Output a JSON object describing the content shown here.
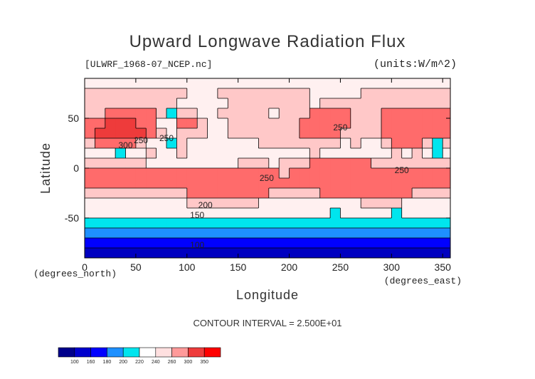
{
  "chart_data": {
    "type": "heatmap",
    "title": "Upward Longwave Radiation Flux",
    "source_label": "[ULWRF_1968-07_NCEP.nc]",
    "units_label": "(units:W/m^2)",
    "xlabel": "Longitude",
    "ylabel": "Latitude",
    "x_unit_label": "(degrees_east)",
    "y_unit_label": "(degrees_north)",
    "xlim": [
      0,
      357.5
    ],
    "ylim": [
      -90,
      90
    ],
    "x_ticks": [
      0,
      50,
      100,
      150,
      200,
      250,
      300,
      350
    ],
    "y_ticks": [
      -50,
      0,
      50
    ],
    "contour_interval_text": "CONTOUR INTERVAL = 2.500E+01",
    "colorbar_levels": [
      100,
      160,
      180,
      200,
      220,
      240,
      260,
      300,
      350
    ],
    "contour_labels": [
      "300",
      "250",
      "250",
      "250",
      "250",
      "250",
      "200",
      "150",
      "100"
    ],
    "grid_resolution_deg": 10,
    "latitudes": [
      85,
      75,
      65,
      55,
      45,
      35,
      25,
      15,
      5,
      -5,
      -15,
      -25,
      -35,
      -45,
      -55,
      -65,
      -75,
      -85
    ],
    "longitudes": [
      5,
      15,
      25,
      35,
      45,
      55,
      65,
      75,
      85,
      95,
      105,
      115,
      125,
      135,
      145,
      155,
      165,
      175,
      185,
      195,
      205,
      215,
      225,
      235,
      245,
      255,
      265,
      275,
      285,
      295,
      305,
      315,
      325,
      335,
      345,
      355
    ],
    "values": [
      [
        230,
        230,
        230,
        230,
        230,
        230,
        230,
        230,
        230,
        230,
        230,
        230,
        230,
        230,
        230,
        230,
        230,
        230,
        230,
        230,
        230,
        230,
        230,
        230,
        230,
        230,
        230,
        230,
        230,
        230,
        230,
        230,
        230,
        230,
        230,
        230
      ],
      [
        240,
        240,
        240,
        240,
        240,
        240,
        240,
        240,
        240,
        240,
        230,
        230,
        230,
        240,
        240,
        240,
        240,
        240,
        240,
        240,
        240,
        240,
        230,
        230,
        230,
        230,
        230,
        240,
        240,
        240,
        240,
        240,
        240,
        240,
        240,
        240
      ],
      [
        240,
        240,
        240,
        240,
        240,
        240,
        240,
        240,
        240,
        230,
        230,
        230,
        230,
        230,
        240,
        240,
        240,
        240,
        240,
        240,
        240,
        240,
        230,
        250,
        250,
        250,
        250,
        240,
        240,
        240,
        240,
        240,
        240,
        240,
        240,
        240
      ],
      [
        250,
        250,
        260,
        260,
        280,
        280,
        260,
        240,
        210,
        240,
        240,
        230,
        230,
        240,
        240,
        240,
        240,
        240,
        230,
        240,
        240,
        250,
        270,
        270,
        270,
        270,
        250,
        250,
        250,
        270,
        270,
        270,
        270,
        270,
        270,
        270
      ],
      [
        270,
        280,
        300,
        300,
        310,
        280,
        270,
        220,
        230,
        270,
        260,
        240,
        230,
        230,
        240,
        240,
        240,
        240,
        240,
        240,
        250,
        260,
        270,
        270,
        270,
        260,
        250,
        250,
        250,
        270,
        270,
        270,
        270,
        270,
        270,
        280
      ],
      [
        280,
        300,
        310,
        300,
        300,
        300,
        280,
        240,
        230,
        240,
        240,
        240,
        230,
        230,
        240,
        240,
        240,
        240,
        240,
        240,
        250,
        260,
        270,
        270,
        270,
        250,
        240,
        240,
        240,
        270,
        270,
        270,
        270,
        270,
        270,
        280
      ],
      [
        250,
        260,
        270,
        270,
        260,
        240,
        220,
        220,
        210,
        240,
        230,
        220,
        220,
        220,
        220,
        230,
        230,
        240,
        240,
        240,
        240,
        240,
        250,
        250,
        240,
        230,
        240,
        220,
        230,
        240,
        260,
        260,
        260,
        240,
        210,
        240
      ],
      [
        230,
        230,
        230,
        210,
        230,
        230,
        240,
        230,
        230,
        240,
        230,
        220,
        230,
        220,
        230,
        220,
        220,
        230,
        230,
        230,
        230,
        230,
        240,
        230,
        230,
        230,
        230,
        220,
        230,
        230,
        240,
        230,
        240,
        230,
        210,
        220
      ],
      [
        240,
        250,
        250,
        250,
        250,
        240,
        230,
        230,
        230,
        230,
        230,
        230,
        230,
        230,
        230,
        240,
        240,
        240,
        230,
        240,
        240,
        250,
        260,
        260,
        260,
        260,
        260,
        260,
        250,
        250,
        250,
        250,
        250,
        240,
        240,
        240
      ],
      [
        260,
        270,
        270,
        260,
        260,
        260,
        260,
        260,
        260,
        260,
        260,
        270,
        270,
        270,
        270,
        270,
        260,
        260,
        260,
        250,
        260,
        270,
        270,
        270,
        270,
        270,
        270,
        270,
        270,
        270,
        270,
        270,
        270,
        270,
        260,
        260
      ],
      [
        260,
        270,
        270,
        270,
        270,
        270,
        260,
        260,
        260,
        270,
        270,
        270,
        270,
        270,
        270,
        270,
        270,
        260,
        260,
        260,
        260,
        260,
        260,
        270,
        270,
        270,
        270,
        270,
        270,
        270,
        270,
        270,
        270,
        270,
        260,
        260
      ],
      [
        250,
        250,
        250,
        250,
        250,
        250,
        250,
        250,
        250,
        250,
        260,
        260,
        260,
        260,
        260,
        260,
        260,
        260,
        250,
        250,
        250,
        250,
        250,
        260,
        260,
        260,
        260,
        260,
        260,
        260,
        260,
        260,
        250,
        250,
        250,
        250
      ],
      [
        230,
        230,
        230,
        230,
        230,
        230,
        230,
        230,
        230,
        230,
        240,
        240,
        240,
        240,
        240,
        240,
        240,
        230,
        230,
        230,
        230,
        230,
        230,
        230,
        230,
        230,
        230,
        240,
        240,
        240,
        240,
        230,
        230,
        230,
        230,
        230
      ],
      [
        220,
        220,
        220,
        220,
        220,
        220,
        220,
        220,
        220,
        220,
        220,
        230,
        230,
        220,
        220,
        220,
        220,
        220,
        220,
        220,
        220,
        220,
        220,
        220,
        210,
        220,
        220,
        220,
        220,
        220,
        210,
        220,
        220,
        220,
        220,
        220
      ],
      [
        200,
        200,
        200,
        200,
        200,
        200,
        200,
        200,
        200,
        200,
        200,
        200,
        200,
        200,
        200,
        200,
        200,
        200,
        200,
        200,
        200,
        200,
        200,
        200,
        200,
        200,
        200,
        200,
        200,
        200,
        200,
        200,
        200,
        200,
        200,
        200
      ],
      [
        180,
        180,
        180,
        180,
        180,
        180,
        180,
        180,
        180,
        180,
        180,
        180,
        180,
        180,
        180,
        180,
        180,
        180,
        180,
        180,
        180,
        180,
        180,
        180,
        180,
        180,
        180,
        180,
        180,
        180,
        180,
        180,
        180,
        180,
        180,
        180
      ],
      [
        170,
        170,
        170,
        170,
        170,
        170,
        170,
        170,
        170,
        170,
        170,
        170,
        170,
        170,
        170,
        170,
        170,
        170,
        170,
        170,
        170,
        170,
        170,
        170,
        170,
        170,
        170,
        170,
        170,
        170,
        170,
        170,
        170,
        170,
        170,
        170
      ],
      [
        150,
        150,
        150,
        150,
        150,
        150,
        150,
        150,
        150,
        150,
        150,
        150,
        150,
        150,
        150,
        150,
        150,
        150,
        150,
        150,
        150,
        150,
        150,
        150,
        150,
        150,
        150,
        150,
        150,
        150,
        150,
        150,
        150,
        150,
        150,
        150
      ]
    ]
  },
  "colors": {
    "bins": [
      "#00008b",
      "#0000cd",
      "#0000ff",
      "#1e90ff",
      "#00e5ee",
      "#ffffff",
      "#ffe0e0",
      "#ff9a9a",
      "#ee3b3b",
      "#ff0000"
    ],
    "map_bins": [
      "#00008b",
      "#0000c0",
      "#0000ff",
      "#1e90ff",
      "#00e5ee",
      "#fff0f0",
      "#ffc8c8",
      "#ff6b6b",
      "#ee3b3b",
      "#e60000"
    ]
  }
}
